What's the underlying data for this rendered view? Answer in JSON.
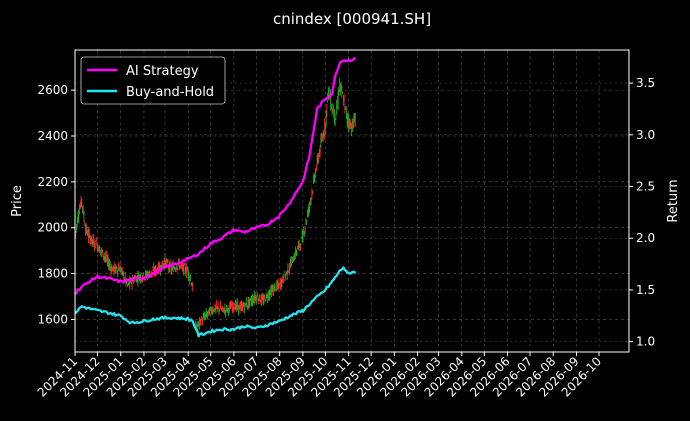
{
  "chart_data": {
    "type": "line",
    "title": "cnindex [000941.SH]",
    "ylabel": "Price",
    "y2label": "Return",
    "grid": true,
    "legend_position": "top-left",
    "background": "#000000",
    "colors": {
      "axes": "#ffffff",
      "grid": "#555555",
      "candle_up": "#ff2a2a",
      "candle_down": "#22aa22"
    },
    "x_ticks": [
      "2024-11",
      "2024-12",
      "2025-01",
      "2025-02",
      "2025-03",
      "2025-04",
      "2025-05",
      "2025-06",
      "2025-07",
      "2025-08",
      "2025-09",
      "2025-10",
      "2025-11",
      "2025-12",
      "2026-01",
      "2026-02",
      "2026-03",
      "2026-04",
      "2026-05",
      "2026-06",
      "2026-07",
      "2026-08",
      "2026-09",
      "2026-10"
    ],
    "xlim": [
      "2024-11-01",
      "2026-11-10"
    ],
    "y_ticks": [
      1600,
      1800,
      2000,
      2200,
      2400,
      2600
    ],
    "ylim": [
      1458,
      2775
    ],
    "y2_ticks": [
      1.0,
      1.5,
      2.0,
      2.5,
      3.0,
      3.5
    ],
    "y2lim": [
      0.9,
      3.82
    ],
    "price_series": {
      "name": "",
      "dates": [
        "2024-11-01",
        "2024-11-05",
        "2024-11-10",
        "2024-11-15",
        "2024-11-20",
        "2024-11-25",
        "2024-12-01",
        "2024-12-10",
        "2024-12-20",
        "2025-01-01",
        "2025-01-10",
        "2025-01-20",
        "2025-02-01",
        "2025-02-10",
        "2025-02-20",
        "2025-03-01",
        "2025-03-10",
        "2025-03-20",
        "2025-04-01",
        "2025-04-07",
        "2025-04-10",
        "2025-04-20",
        "2025-05-01",
        "2025-05-10",
        "2025-05-20",
        "2025-06-01",
        "2025-06-10",
        "2025-06-20",
        "2025-07-01",
        "2025-07-10",
        "2025-07-20",
        "2025-08-01",
        "2025-08-10",
        "2025-08-20",
        "2025-09-01",
        "2025-09-10",
        "2025-09-20",
        "2025-10-01",
        "2025-10-05",
        "2025-10-10",
        "2025-10-15",
        "2025-10-20",
        "2025-10-25",
        "2025-10-30",
        "2025-11-05",
        "2025-11-10"
      ],
      "values": [
        1960,
        2050,
        2120,
        2000,
        1960,
        1940,
        1920,
        1880,
        1820,
        1820,
        1750,
        1780,
        1790,
        1800,
        1820,
        1850,
        1820,
        1840,
        1810,
        1740,
        1560,
        1600,
        1640,
        1650,
        1640,
        1660,
        1650,
        1670,
        1700,
        1680,
        1720,
        1750,
        1800,
        1870,
        1960,
        2100,
        2280,
        2450,
        2600,
        2520,
        2480,
        2620,
        2560,
        2480,
        2440,
        2470
      ],
      "candle_colors": [
        "up",
        "up",
        "down",
        "down",
        "up",
        "down",
        "up",
        "down",
        "up",
        "down",
        "up",
        "down",
        "up",
        "up",
        "down",
        "up",
        "down",
        "up",
        "down",
        "up",
        "up",
        "down",
        "down",
        "up",
        "down",
        "up",
        "up",
        "down",
        "up",
        "up",
        "down",
        "up",
        "up",
        "up",
        "up",
        "up",
        "up",
        "up",
        "down",
        "up",
        "down",
        "up",
        "up",
        "up",
        "up",
        "up"
      ]
    },
    "series": [
      {
        "name": "AI Strategy",
        "color": "#ff00ff",
        "dates": [
          "2024-11-01",
          "2024-11-10",
          "2024-11-20",
          "2024-12-01",
          "2024-12-15",
          "2025-01-01",
          "2025-01-15",
          "2025-02-01",
          "2025-02-15",
          "2025-03-01",
          "2025-03-15",
          "2025-04-01",
          "2025-04-15",
          "2025-05-01",
          "2025-05-15",
          "2025-06-01",
          "2025-06-15",
          "2025-07-01",
          "2025-07-15",
          "2025-08-01",
          "2025-08-15",
          "2025-09-01",
          "2025-09-10",
          "2025-09-20",
          "2025-10-01",
          "2025-10-10",
          "2025-10-15",
          "2025-10-22",
          "2025-10-30",
          "2025-11-10"
        ],
        "values": [
          1.47,
          1.53,
          1.58,
          1.63,
          1.61,
          1.58,
          1.6,
          1.62,
          1.66,
          1.72,
          1.75,
          1.8,
          1.85,
          1.95,
          2.0,
          2.08,
          2.06,
          2.1,
          2.13,
          2.22,
          2.35,
          2.55,
          2.8,
          3.25,
          3.35,
          3.4,
          3.6,
          3.72,
          3.72,
          3.73
        ]
      },
      {
        "name": "Buy-and-Hold",
        "color": "#22e5f0",
        "dates": [
          "2024-11-01",
          "2024-11-10",
          "2024-11-20",
          "2024-12-01",
          "2024-12-15",
          "2025-01-01",
          "2025-01-15",
          "2025-02-01",
          "2025-02-15",
          "2025-03-01",
          "2025-03-15",
          "2025-04-01",
          "2025-04-07",
          "2025-04-15",
          "2025-05-01",
          "2025-05-15",
          "2025-06-01",
          "2025-06-15",
          "2025-07-01",
          "2025-07-15",
          "2025-08-01",
          "2025-08-15",
          "2025-09-01",
          "2025-09-15",
          "2025-10-01",
          "2025-10-10",
          "2025-10-20",
          "2025-10-25",
          "2025-10-30",
          "2025-11-10"
        ],
        "values": [
          1.28,
          1.34,
          1.32,
          1.3,
          1.28,
          1.25,
          1.18,
          1.2,
          1.22,
          1.23,
          1.23,
          1.22,
          1.2,
          1.06,
          1.1,
          1.12,
          1.12,
          1.15,
          1.13,
          1.16,
          1.2,
          1.25,
          1.3,
          1.4,
          1.5,
          1.58,
          1.68,
          1.72,
          1.66,
          1.68
        ]
      }
    ]
  }
}
